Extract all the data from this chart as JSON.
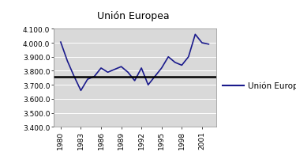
{
  "title": "Unión Europea",
  "legend_label": "Unión Europea",
  "years": [
    1980,
    1981,
    1982,
    1983,
    1984,
    1985,
    1986,
    1987,
    1988,
    1989,
    1990,
    1991,
    1992,
    1993,
    1994,
    1995,
    1996,
    1997,
    1998,
    1999,
    2000,
    2001,
    2002
  ],
  "values": [
    4005,
    3870,
    3760,
    3660,
    3740,
    3760,
    3820,
    3790,
    3810,
    3830,
    3790,
    3730,
    3820,
    3700,
    3760,
    3820,
    3900,
    3860,
    3840,
    3900,
    4060,
    4000,
    3990
  ],
  "mean_line": 3755,
  "line_color": "#1a1a8c",
  "mean_line_color": "#000000",
  "bg_color": "#d9d9d9",
  "outer_bg": "#ffffff",
  "ylim": [
    3400,
    4100
  ],
  "yticks": [
    3400.0,
    3500.0,
    3600.0,
    3700.0,
    3800.0,
    3900.0,
    4000.0,
    4100.0
  ],
  "xticks": [
    1980,
    1983,
    1986,
    1989,
    1992,
    1995,
    1998,
    2001
  ],
  "title_fontsize": 9,
  "tick_fontsize": 6.5,
  "legend_fontsize": 7.5
}
